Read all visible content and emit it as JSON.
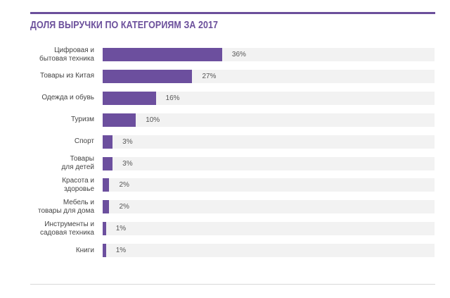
{
  "chart_data": {
    "type": "bar",
    "orientation": "horizontal",
    "title": "ДОЛЯ ВЫРУЧКИ ПО КАТЕГОРИЯМ ЗА 2017",
    "xlabel": "",
    "ylabel": "",
    "xlim": [
      0,
      100
    ],
    "grid": false,
    "bar_color": "#6c4f9e",
    "track_color": "#f2f2f2",
    "title_color": "#6b4f9b",
    "categories": [
      [
        "Цифровая и",
        "бытовая техника"
      ],
      [
        "Товары из Китая"
      ],
      [
        "Одежда и обувь"
      ],
      [
        "Туризм"
      ],
      [
        "Спорт"
      ],
      [
        "Товары",
        "для детей"
      ],
      [
        "Красота и",
        "здоровье"
      ],
      [
        "Мебель и",
        "товары для дома"
      ],
      [
        "Инструменты и",
        "садовая техника"
      ],
      [
        "Книги"
      ]
    ],
    "values": [
      36,
      27,
      16,
      10,
      3,
      3,
      2,
      2,
      1,
      1
    ],
    "value_labels": [
      "36%",
      "27%",
      "16%",
      "10%",
      "3%",
      "3%",
      "2%",
      "2%",
      "1%",
      "1%"
    ]
  }
}
